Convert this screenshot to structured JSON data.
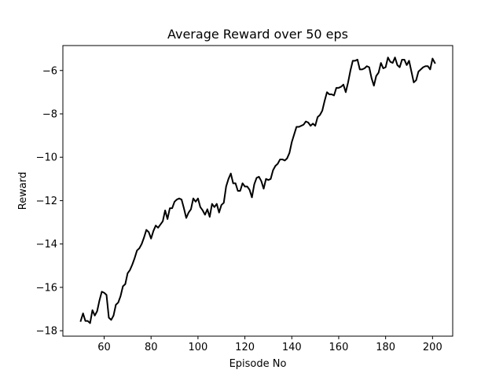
{
  "chart_data": {
    "type": "line",
    "title": "Average Reward over 50 eps",
    "xlabel": "Episode No",
    "ylabel": "Reward",
    "xlim": [
      42.4,
      208.6
    ],
    "ylim": [
      -18.25,
      -4.85
    ],
    "xticks": [
      60,
      80,
      100,
      120,
      140,
      160,
      180,
      200
    ],
    "yticks": [
      -18,
      -16,
      -14,
      -12,
      -10,
      -8,
      -6
    ],
    "xtick_labels": [
      "60",
      "80",
      "100",
      "120",
      "140",
      "160",
      "180",
      "200"
    ],
    "ytick_labels": [
      "−18",
      "−16",
      "−14",
      "−12",
      "−10",
      "−8",
      "−6"
    ],
    "grid": false,
    "series": [
      {
        "color": "#000000",
        "x": [
          50,
          51,
          52,
          53,
          54,
          55,
          56,
          57,
          58,
          59,
          60,
          61,
          62,
          63,
          64,
          65,
          66,
          67,
          68,
          69,
          70,
          71,
          72,
          73,
          74,
          75,
          76,
          77,
          78,
          79,
          80,
          81,
          82,
          83,
          84,
          85,
          86,
          87,
          88,
          89,
          90,
          91,
          92,
          93,
          94,
          95,
          96,
          97,
          98,
          99,
          100,
          101,
          102,
          103,
          104,
          105,
          106,
          107,
          108,
          109,
          110,
          111,
          112,
          113,
          114,
          115,
          116,
          117,
          118,
          119,
          120,
          121,
          122,
          123,
          124,
          125,
          126,
          127,
          128,
          129,
          130,
          131,
          132,
          133,
          134,
          135,
          136,
          137,
          138,
          139,
          140,
          141,
          142,
          143,
          144,
          145,
          146,
          147,
          148,
          149,
          150,
          151,
          152,
          153,
          154,
          155,
          156,
          157,
          158,
          159,
          160,
          161,
          162,
          163,
          164,
          165,
          166,
          167,
          168,
          169,
          170,
          171,
          172,
          173,
          174,
          175,
          176,
          177,
          178,
          179,
          180,
          181,
          182,
          183,
          184,
          185,
          186,
          187,
          188,
          189,
          190,
          191,
          192,
          193,
          194,
          195,
          196,
          197,
          198,
          199,
          200,
          201
        ],
        "y": [
          -17.55,
          -17.2,
          -17.55,
          -17.55,
          -17.65,
          -17.05,
          -17.3,
          -17.1,
          -16.6,
          -16.2,
          -16.25,
          -16.35,
          -17.4,
          -17.5,
          -17.3,
          -16.8,
          -16.7,
          -16.4,
          -15.95,
          -15.85,
          -15.35,
          -15.2,
          -14.95,
          -14.65,
          -14.3,
          -14.2,
          -14.0,
          -13.7,
          -13.35,
          -13.45,
          -13.75,
          -13.4,
          -13.15,
          -13.25,
          -13.1,
          -12.95,
          -12.45,
          -12.85,
          -12.35,
          -12.35,
          -12.05,
          -11.95,
          -11.9,
          -11.95,
          -12.35,
          -12.8,
          -12.55,
          -12.4,
          -11.9,
          -12.05,
          -11.9,
          -12.3,
          -12.45,
          -12.65,
          -12.4,
          -12.75,
          -12.15,
          -12.3,
          -12.15,
          -12.55,
          -12.2,
          -12.1,
          -11.35,
          -11.0,
          -10.75,
          -11.2,
          -11.2,
          -11.55,
          -11.55,
          -11.2,
          -11.35,
          -11.35,
          -11.5,
          -11.85,
          -11.25,
          -10.95,
          -10.9,
          -11.1,
          -11.45,
          -11.0,
          -11.05,
          -11.0,
          -10.6,
          -10.4,
          -10.3,
          -10.1,
          -10.1,
          -10.15,
          -10.05,
          -9.8,
          -9.3,
          -8.95,
          -8.6,
          -8.6,
          -8.55,
          -8.5,
          -8.35,
          -8.4,
          -8.55,
          -8.45,
          -8.55,
          -8.15,
          -8.05,
          -7.85,
          -7.4,
          -7.0,
          -7.1,
          -7.1,
          -7.15,
          -6.8,
          -6.8,
          -6.75,
          -6.65,
          -7.0,
          -6.55,
          -6.0,
          -5.55,
          -5.55,
          -5.5,
          -5.95,
          -5.95,
          -5.9,
          -5.8,
          -5.85,
          -6.35,
          -6.7,
          -6.25,
          -6.1,
          -5.65,
          -5.9,
          -5.85,
          -5.4,
          -5.6,
          -5.65,
          -5.4,
          -5.75,
          -5.85,
          -5.5,
          -5.5,
          -5.75,
          -5.55,
          -6.05,
          -6.55,
          -6.45,
          -6.05,
          -5.95,
          -5.85,
          -5.8,
          -5.8,
          -5.95,
          -5.45,
          -5.65
        ]
      }
    ]
  }
}
